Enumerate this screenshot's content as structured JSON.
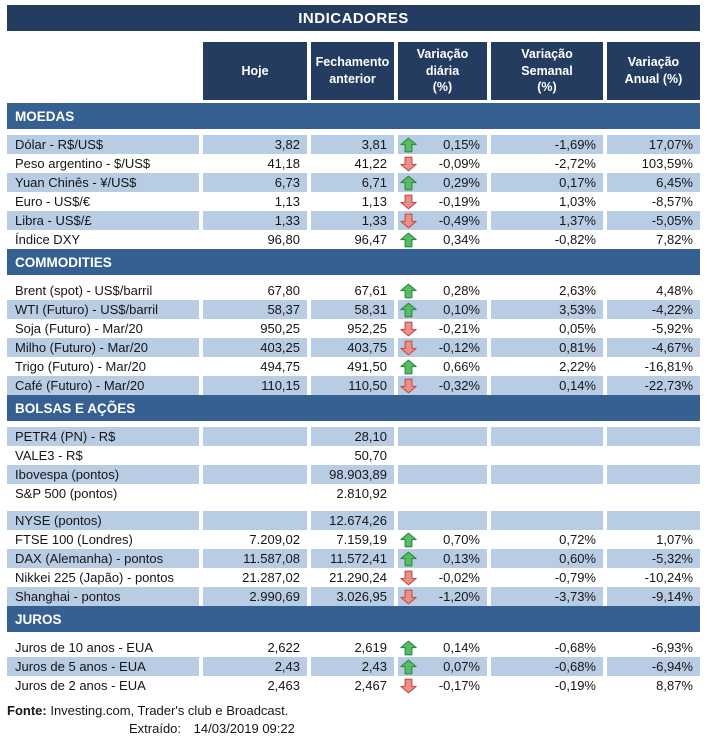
{
  "title": "INDICADORES",
  "columns": [
    "Hoje",
    "Fechamento\nanterior",
    "Variação diária\n(%)",
    "Variação Semanal\n(%)",
    "Variação\nAnual (%)"
  ],
  "sections": [
    {
      "name": "MOEDAS",
      "rows": [
        {
          "label": "Dólar - R$/US$",
          "hoje": "3,82",
          "fechamento": "3,81",
          "arrow": "up",
          "diaria": "0,15%",
          "semanal": "-1,69%",
          "anual": "17,07%",
          "shaded": true
        },
        {
          "label": "Peso argentino - $/US$",
          "hoje": "41,18",
          "fechamento": "41,22",
          "arrow": "down",
          "diaria": "-0,09%",
          "semanal": "-2,72%",
          "anual": "103,59%",
          "shaded": false
        },
        {
          "label": "Yuan Chinês - ¥/US$",
          "hoje": "6,73",
          "fechamento": "6,71",
          "arrow": "up",
          "diaria": "0,29%",
          "semanal": "0,17%",
          "anual": "6,45%",
          "shaded": true
        },
        {
          "label": "Euro - US$/€",
          "hoje": "1,13",
          "fechamento": "1,13",
          "arrow": "down",
          "diaria": "-0,19%",
          "semanal": "1,03%",
          "anual": "-8,57%",
          "shaded": false
        },
        {
          "label": "Libra - US$/£",
          "hoje": "1,33",
          "fechamento": "1,33",
          "arrow": "down",
          "diaria": "-0,49%",
          "semanal": "1,37%",
          "anual": "-5,05%",
          "shaded": true
        },
        {
          "label": "Índice DXY",
          "hoje": "96,80",
          "fechamento": "96,47",
          "arrow": "up",
          "diaria": "0,34%",
          "semanal": "-0,82%",
          "anual": "7,82%",
          "shaded": false
        }
      ]
    },
    {
      "name": "COMMODITIES",
      "rows": [
        {
          "label": "Brent (spot) - US$/barril",
          "hoje": "67,80",
          "fechamento": "67,61",
          "arrow": "up",
          "diaria": "0,28%",
          "semanal": "2,63%",
          "anual": "4,48%",
          "shaded": false
        },
        {
          "label": "WTI (Futuro) - US$/barril",
          "hoje": "58,37",
          "fechamento": "58,31",
          "arrow": "up",
          "diaria": "0,10%",
          "semanal": "3,53%",
          "anual": "-4,22%",
          "shaded": true
        },
        {
          "label": "Soja (Futuro) - Mar/20",
          "hoje": "950,25",
          "fechamento": "952,25",
          "arrow": "down",
          "diaria": "-0,21%",
          "semanal": "0,05%",
          "anual": "-5,92%",
          "shaded": false
        },
        {
          "label": "Milho (Futuro) - Mar/20",
          "hoje": "403,25",
          "fechamento": "403,75",
          "arrow": "down",
          "diaria": "-0,12%",
          "semanal": "0,81%",
          "anual": "-4,67%",
          "shaded": true
        },
        {
          "label": "Trigo (Futuro) - Mar/20",
          "hoje": "494,75",
          "fechamento": "491,50",
          "arrow": "up",
          "diaria": "0,66%",
          "semanal": "2,22%",
          "anual": "-16,81%",
          "shaded": false
        },
        {
          "label": "Café (Futuro) - Mar/20",
          "hoje": "110,15",
          "fechamento": "110,50",
          "arrow": "down",
          "diaria": "-0,32%",
          "semanal": "0,14%",
          "anual": "-22,73%",
          "shaded": true
        }
      ]
    },
    {
      "name": "BOLSAS E AÇÕES",
      "rows": [
        {
          "label": "PETR4 (PN) - R$",
          "hoje": "",
          "fechamento": "28,10",
          "arrow": null,
          "diaria": "",
          "semanal": "",
          "anual": "",
          "shaded": true
        },
        {
          "label": "VALE3 - R$",
          "hoje": "",
          "fechamento": "50,70",
          "arrow": null,
          "diaria": "",
          "semanal": "",
          "anual": "",
          "shaded": false
        },
        {
          "label": "Ibovespa (pontos)",
          "hoje": "",
          "fechamento": "98.903,89",
          "arrow": null,
          "diaria": "",
          "semanal": "",
          "anual": "",
          "shaded": true
        },
        {
          "label": "S&P 500 (pontos)",
          "hoje": "",
          "fechamento": "2.810,92",
          "arrow": null,
          "diaria": "",
          "semanal": "",
          "anual": "",
          "shaded": false,
          "gap_after": true
        },
        {
          "label": "NYSE (pontos)",
          "hoje": "",
          "fechamento": "12.674,26",
          "arrow": null,
          "diaria": "",
          "semanal": "",
          "anual": "",
          "shaded": true
        },
        {
          "label": "FTSE 100 (Londres)",
          "hoje": "7.209,02",
          "fechamento": "7.159,19",
          "arrow": "up",
          "diaria": "0,70%",
          "semanal": "0,72%",
          "anual": "1,07%",
          "shaded": false
        },
        {
          "label": "DAX (Alemanha) - pontos",
          "hoje": "11.587,08",
          "fechamento": "11.572,41",
          "arrow": "up",
          "diaria": "0,13%",
          "semanal": "0,60%",
          "anual": "-5,32%",
          "shaded": true
        },
        {
          "label": "Nikkei 225 (Japão) - pontos",
          "hoje": "21.287,02",
          "fechamento": "21.290,24",
          "arrow": "down",
          "diaria": "-0,02%",
          "semanal": "-0,79%",
          "anual": "-10,24%",
          "shaded": false
        },
        {
          "label": "Shanghai - pontos",
          "hoje": "2.990,69",
          "fechamento": "3.026,95",
          "arrow": "down",
          "diaria": "-1,20%",
          "semanal": "-3,73%",
          "anual": "-9,14%",
          "shaded": true
        }
      ]
    },
    {
      "name": "JUROS",
      "rows": [
        {
          "label": "Juros de 10 anos - EUA",
          "hoje": "2,622",
          "fechamento": "2,619",
          "arrow": "up",
          "diaria": "0,14%",
          "semanal": "-0,68%",
          "anual": "-6,93%",
          "shaded": false
        },
        {
          "label": "Juros de 5 anos - EUA",
          "hoje": "2,43",
          "fechamento": "2,43",
          "arrow": "up",
          "diaria": "0,07%",
          "semanal": "-0,68%",
          "anual": "-6,94%",
          "shaded": true
        },
        {
          "label": "Juros de 2 anos - EUA",
          "hoje": "2,463",
          "fechamento": "2,467",
          "arrow": "down",
          "diaria": "-0,17%",
          "semanal": "-0,19%",
          "anual": "8,87%",
          "shaded": false
        }
      ]
    }
  ],
  "footer": {
    "fonte_label": "Fonte:",
    "fonte_text": "Investing.com, Trader's club e Broadcast.",
    "extraido_label": "Extraído:",
    "extraido_value": "14/03/2019 09:22"
  },
  "colors": {
    "navy": "#243C60",
    "section_blue": "#366092",
    "stripe": "#B8CCE4",
    "text": "#161616",
    "arrow_up_fill": "#57BB68",
    "arrow_up_stroke": "#2F8A3F",
    "arrow_down_fill": "#EC8F8B",
    "arrow_down_stroke": "#C0504D"
  }
}
